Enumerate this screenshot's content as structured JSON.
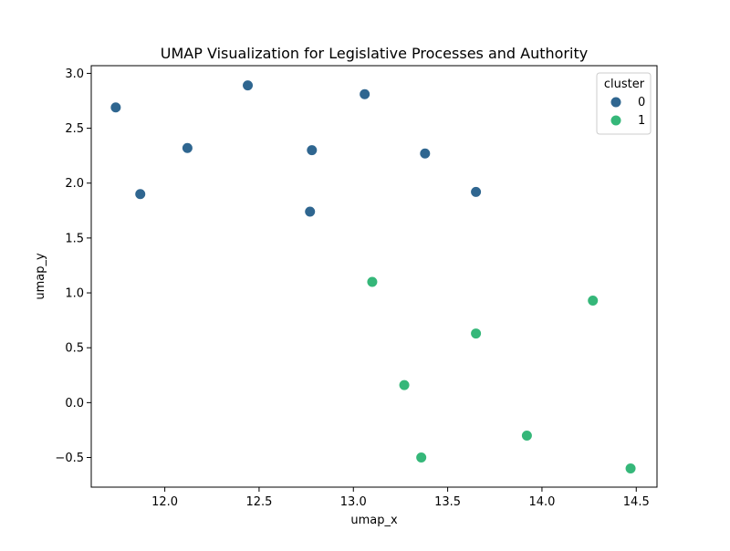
{
  "chart_data": {
    "type": "scatter",
    "title": "UMAP Visualization for Legislative Processes and Authority",
    "xlabel": "umap_x",
    "ylabel": "umap_y",
    "xlim": [
      11.61,
      14.61
    ],
    "ylim": [
      -0.77,
      3.07
    ],
    "xticks": [
      12.0,
      12.5,
      13.0,
      13.5,
      14.0,
      14.5
    ],
    "xtick_labels": [
      "12.0",
      "12.5",
      "13.0",
      "13.5",
      "14.0",
      "14.5"
    ],
    "yticks": [
      -0.5,
      0.0,
      0.5,
      1.0,
      1.5,
      2.0,
      2.5,
      3.0
    ],
    "ytick_labels": [
      "−0.5",
      "0.0",
      "0.5",
      "1.0",
      "1.5",
      "2.0",
      "2.5",
      "3.0"
    ],
    "grid": false,
    "legend": {
      "title": "cluster",
      "placement": "top-right"
    },
    "series": [
      {
        "name": "0",
        "color": "#2f6690",
        "points": [
          {
            "x": 11.74,
            "y": 2.69
          },
          {
            "x": 11.87,
            "y": 1.9
          },
          {
            "x": 12.12,
            "y": 2.32
          },
          {
            "x": 12.44,
            "y": 2.89
          },
          {
            "x": 12.77,
            "y": 1.74
          },
          {
            "x": 12.78,
            "y": 2.3
          },
          {
            "x": 13.06,
            "y": 2.81
          },
          {
            "x": 13.38,
            "y": 2.27
          },
          {
            "x": 13.65,
            "y": 1.92
          }
        ]
      },
      {
        "name": "1",
        "color": "#35b779",
        "points": [
          {
            "x": 13.1,
            "y": 1.1
          },
          {
            "x": 13.65,
            "y": 0.63
          },
          {
            "x": 14.27,
            "y": 0.93
          },
          {
            "x": 13.27,
            "y": 0.16
          },
          {
            "x": 13.92,
            "y": -0.3
          },
          {
            "x": 13.36,
            "y": -0.5
          },
          {
            "x": 14.47,
            "y": -0.6
          }
        ]
      }
    ]
  }
}
